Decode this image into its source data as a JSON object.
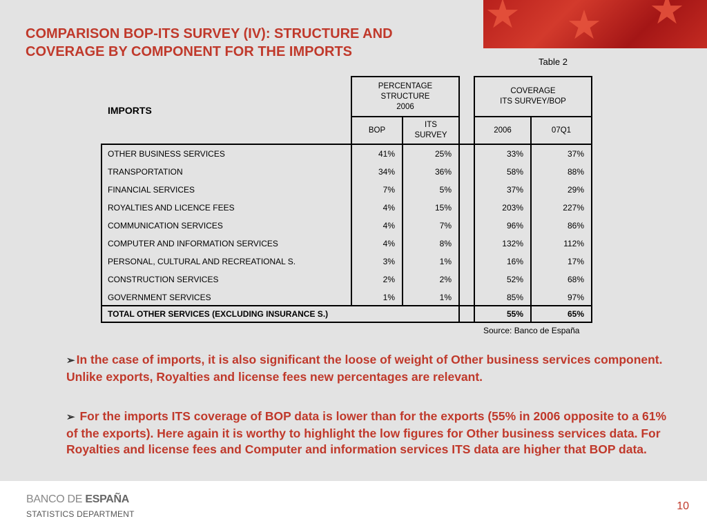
{
  "slide": {
    "title": "COMPARISON BOP-ITS SURVEY (IV): STRUCTURE AND COVERAGE BY COMPONENT FOR THE IMPORTS",
    "table_label": "Table  2",
    "accent_color": "#c0392b"
  },
  "table": {
    "row_header": "IMPORTS",
    "group1_header": [
      "PERCENTAGE",
      "STRUCTURE",
      "2006"
    ],
    "group2_header": [
      "COVERAGE",
      "ITS SURVEY/BOP"
    ],
    "subheaders": {
      "bop": "BOP",
      "its": [
        "ITS",
        "SURVEY"
      ],
      "y2006": "2006",
      "q07": "07Q1"
    },
    "rows": [
      {
        "label": "OTHER BUSINESS SERVICES",
        "bop": "41%",
        "its": "25%",
        "cov2006": "33%",
        "cov07q1": "37%"
      },
      {
        "label": "TRANSPORTATION",
        "bop": "34%",
        "its": "36%",
        "cov2006": "58%",
        "cov07q1": "88%"
      },
      {
        "label": "FINANCIAL SERVICES",
        "bop": "7%",
        "its": "5%",
        "cov2006": "37%",
        "cov07q1": "29%"
      },
      {
        "label": "ROYALTIES AND LICENCE FEES",
        "bop": "4%",
        "its": "15%",
        "cov2006": "203%",
        "cov07q1": "227%"
      },
      {
        "label": "COMMUNICATION SERVICES",
        "bop": "4%",
        "its": "7%",
        "cov2006": "96%",
        "cov07q1": "86%"
      },
      {
        "label": "COMPUTER AND INFORMATION SERVICES",
        "bop": "4%",
        "its": "8%",
        "cov2006": "132%",
        "cov07q1": "112%"
      },
      {
        "label": "PERSONAL, CULTURAL AND RECREATIONAL S.",
        "bop": "3%",
        "its": "1%",
        "cov2006": "16%",
        "cov07q1": "17%"
      },
      {
        "label": "CONSTRUCTION SERVICES",
        "bop": "2%",
        "its": "2%",
        "cov2006": "52%",
        "cov07q1": "68%"
      },
      {
        "label": "GOVERNMENT SERVICES",
        "bop": "1%",
        "its": "1%",
        "cov2006": "85%",
        "cov07q1": "97%"
      }
    ],
    "total": {
      "label": "TOTAL OTHER SERVICES (EXCLUDING INSURANCE S.)",
      "cov2006": "55%",
      "cov07q1": "65%"
    },
    "source": "Source: Banco de España"
  },
  "bullets": [
    "In the case of imports, it is also significant the loose of weight of Other business services component. Unlike exports, Royalties and license fees new percentages are relevant.",
    " For the imports ITS coverage of BOP data is lower than for the exports (55% in 2006 opposite to a 61% of the exports). Here again it is worthy to highlight the low figures for Other business services data. For Royalties and license fees and Computer and information services ITS data are higher that BOP data."
  ],
  "footer": {
    "brand_part1": "BANCO DE ",
    "brand_part2": "ESPAÑA",
    "department": "STATISTICS DEPARTMENT",
    "page_number": "10"
  }
}
